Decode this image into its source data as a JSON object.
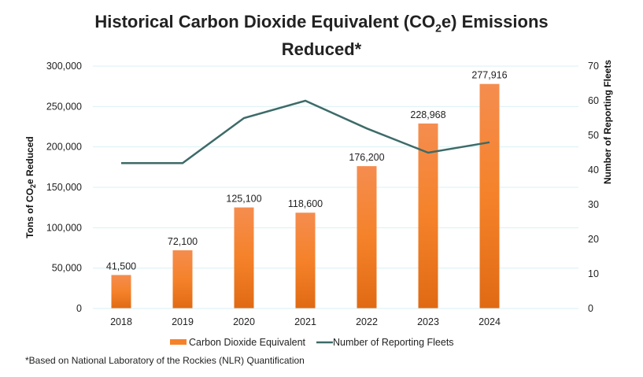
{
  "chart_data": {
    "type": "bar+line",
    "title": "Historical Carbon Dioxide Equivalent (CO2e) Emissions Reduced*",
    "title_parts": {
      "before": "Historical Carbon Dioxide Equivalent (CO",
      "sub": "2",
      "after_line1": "e) Emissions",
      "line2": "Reduced*"
    },
    "categories": [
      "2018",
      "2019",
      "2020",
      "2021",
      "2022",
      "2023",
      "2024"
    ],
    "series": [
      {
        "name": "Carbon Dioxide Equivalent",
        "type": "bar",
        "axis": "left",
        "color": "#f5822a",
        "values": [
          41500,
          72100,
          125100,
          118600,
          176200,
          228968,
          277916
        ],
        "labels": [
          "41,500",
          "72,100",
          "125,100",
          "118,600",
          "176,200",
          "228,968",
          "277,916"
        ]
      },
      {
        "name": "Number of Reporting Fleets",
        "type": "line",
        "axis": "right",
        "color": "#3d6b68",
        "values": [
          42,
          42,
          55,
          60,
          52,
          45,
          48
        ]
      }
    ],
    "ylabel": "Tons of CO2e Reduced",
    "ylabel_parts": {
      "before": "Tons of CO",
      "sub": "2",
      "after": "e Reduced"
    },
    "y2label": "Number of Reporting Fleets",
    "ylim": [
      0,
      300000
    ],
    "y2lim": [
      0,
      70
    ],
    "yticks": [
      "0",
      "50,000",
      "100,000",
      "150,000",
      "200,000",
      "250,000",
      "300,000"
    ],
    "y2ticks": [
      "0",
      "10",
      "20",
      "30",
      "40",
      "50",
      "60",
      "70"
    ],
    "grid": true,
    "gridline_color": "#d9f0f5",
    "legend_position": "bottom",
    "footnote": "*Based on National Laboratory of the Rockies (NLR) Quantification"
  }
}
